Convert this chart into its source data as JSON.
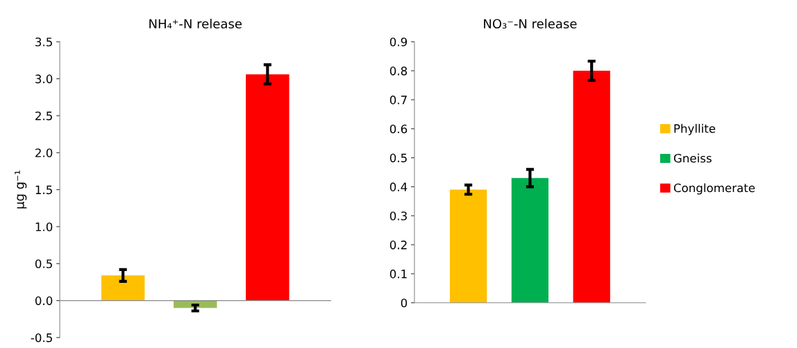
{
  "chart_data": [
    {
      "type": "bar",
      "title": "NH₄⁺-N release",
      "ylabel": "μg g⁻¹",
      "categories": [
        null
      ],
      "ylim": [
        -0.5,
        3.5
      ],
      "yticks": [
        {
          "value": -0.5,
          "label": "-0.5"
        },
        {
          "value": 0,
          "label": "0.0"
        },
        0.5,
        {
          "value": 1,
          "label": "1.0"
        },
        1.5,
        {
          "value": 2,
          "label": "2.0"
        },
        2.5,
        {
          "value": 3,
          "label": "3.0"
        },
        3.5
      ],
      "legend": false,
      "series": [
        {
          "color": "#ffc000",
          "values": [
            0.34
          ],
          "errors": [
            0.08
          ]
        },
        {
          "color": "#9bbb59",
          "values": [
            -0.1
          ],
          "errors": [
            0.04
          ]
        },
        {
          "color": "#ff0000",
          "values": [
            3.06
          ],
          "errors": [
            0.13
          ]
        }
      ]
    },
    {
      "type": "bar",
      "title": "NO₃⁻-N release",
      "categories": [
        null
      ],
      "ylim": [
        0,
        0.9
      ],
      "yticks": [
        0,
        0.1,
        0.2,
        0.3,
        0.4,
        0.5,
        0.6,
        0.7,
        0.8,
        0.9
      ],
      "legend": "right",
      "series": [
        {
          "name": "Phyllite",
          "color": "#ffc000",
          "values": [
            0.39
          ],
          "errors": [
            0.016
          ]
        },
        {
          "name": "Gneiss",
          "color": "#00b050",
          "values": [
            0.43
          ],
          "errors": [
            0.03
          ]
        },
        {
          "name": "Conglomerate",
          "color": "#ff0000",
          "values": [
            0.8
          ],
          "errors": [
            0.033
          ]
        }
      ]
    }
  ]
}
